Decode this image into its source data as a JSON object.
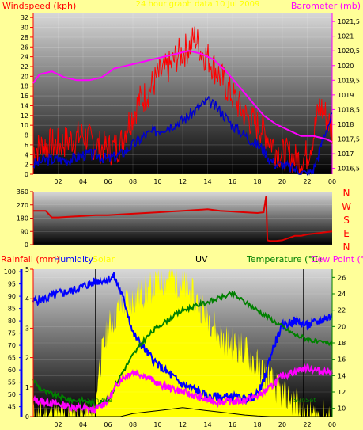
{
  "colors": {
    "background": "#ffff99",
    "wind": "#ff0000",
    "wind_avg": "#0000cc",
    "barometer": "#ff00ff",
    "direction": "#dd0000",
    "humidity": "#0000ff",
    "solar": "#ffff00",
    "uv": "#000000",
    "temperature": "#008000",
    "dewpoint": "#ff00ff",
    "rainfall": "#ff0000",
    "axis_blue": "#0000ff",
    "axis_green": "#008000"
  },
  "chart_data": [
    {
      "type": "line",
      "title": "24 hour graph data 10 Jul 2009",
      "left_axis_label": "Windspeed (kph)",
      "right_axis_label": "Barometer (mb)",
      "x_ticks": [
        "02",
        "04",
        "06",
        "08",
        "10",
        "12",
        "14",
        "16",
        "18",
        "20",
        "22",
        "00"
      ],
      "left_ticks": [
        "0",
        "2",
        "4",
        "6",
        "8",
        "10",
        "12",
        "14",
        "16",
        "18",
        "20",
        "22",
        "24",
        "26",
        "28",
        "30",
        "32"
      ],
      "right_ticks": [
        "1016,5",
        "1017",
        "1017,5",
        "1018",
        "1018,5",
        "1019",
        "1019,5",
        "1020",
        "1020,5",
        "1021",
        "1021,5"
      ],
      "xlim": [
        0,
        24
      ],
      "ylim_left": [
        0,
        33
      ],
      "ylim_right": [
        1016.3,
        1021.8
      ],
      "series": [
        {
          "role": "windspeed",
          "axis": "left",
          "x": [
            0,
            1,
            2,
            3,
            4,
            5,
            6,
            7,
            7.5,
            8,
            8.5,
            9,
            9.5,
            10,
            10.5,
            11,
            11.5,
            12,
            12.5,
            13,
            13.5,
            14,
            14.5,
            15,
            15.5,
            16,
            16.5,
            17,
            17.5,
            18,
            18.5,
            19,
            19.5,
            20,
            20.5,
            21,
            21.5,
            22,
            22.5,
            23,
            23.5,
            24
          ],
          "values": [
            5,
            6,
            6,
            7,
            8,
            6,
            5,
            6,
            10,
            12,
            15,
            16,
            18,
            20,
            21,
            22,
            24,
            25,
            26,
            28,
            25,
            24,
            22,
            20,
            18,
            16,
            14,
            12,
            11,
            10,
            9,
            7,
            5,
            4,
            4,
            3,
            3,
            4,
            8,
            14,
            12,
            9
          ]
        },
        {
          "role": "windspeed-avg",
          "axis": "left",
          "x": [
            0,
            1,
            2,
            3,
            4,
            5,
            6,
            7,
            8,
            9,
            10,
            11,
            12,
            13,
            14,
            15,
            16,
            17,
            18,
            18.5,
            19,
            19.5,
            20,
            21,
            22,
            22.5,
            23,
            23.5,
            24
          ],
          "values": [
            2,
            3,
            3,
            3,
            4,
            4,
            3,
            4,
            6,
            8,
            9,
            10,
            11,
            13,
            15,
            13,
            10,
            8,
            6,
            5,
            3,
            2,
            2,
            1,
            0,
            1,
            5,
            9,
            12
          ]
        },
        {
          "role": "barometer",
          "axis": "right",
          "x": [
            0,
            0.5,
            1.5,
            2.5,
            3.5,
            4.5,
            5.5,
            6.5,
            7.5,
            8.5,
            9.5,
            10.5,
            11.5,
            12.5,
            13.5,
            14.5,
            15.5,
            16.5,
            17.5,
            18.5,
            19.5,
            20.5,
            21.5,
            22.5,
            23.5,
            24
          ],
          "values": [
            1019.4,
            1019.7,
            1019.8,
            1019.6,
            1019.5,
            1019.5,
            1019.6,
            1019.9,
            1020,
            1020.1,
            1020.2,
            1020.3,
            1020.4,
            1020.5,
            1020.4,
            1020.2,
            1019.8,
            1019.3,
            1018.8,
            1018.3,
            1018,
            1017.8,
            1017.6,
            1017.6,
            1017.5,
            1017.4
          ]
        }
      ]
    },
    {
      "type": "line",
      "direction_labels": [
        "N",
        "W",
        "S",
        "E",
        "N"
      ],
      "y_ticks": [
        "0",
        "90",
        "180",
        "270",
        "360"
      ],
      "ylim": [
        0,
        360
      ],
      "xlim": [
        0,
        24
      ],
      "series": [
        {
          "role": "wind-direction",
          "x": [
            0,
            1,
            1.5,
            2,
            3,
            4,
            5,
            6,
            7,
            8,
            9,
            10,
            11,
            12,
            13,
            14,
            15,
            16,
            17,
            18,
            18.5,
            18.7,
            18.8,
            19,
            19.5,
            20,
            20.5,
            21,
            21.5,
            22,
            23,
            24
          ],
          "values": [
            230,
            230,
            185,
            185,
            190,
            195,
            200,
            200,
            205,
            210,
            215,
            220,
            225,
            230,
            235,
            240,
            230,
            225,
            220,
            215,
            220,
            330,
            30,
            25,
            25,
            30,
            45,
            60,
            60,
            70,
            80,
            90
          ]
        }
      ]
    },
    {
      "type": "line",
      "labels": {
        "rainfall": "Rainfall (mm)",
        "humidity": "Humidity",
        "solar": "Solar",
        "uv": "UV",
        "temperature": "Temperature (°C)",
        "dewpoint": "Dew Point (°C)"
      },
      "sunrise_label": "SunRise",
      "sunset_label": "SunSet",
      "sunrise_hour": 5,
      "sunset_hour": 21.7,
      "x_ticks": [
        "02",
        "04",
        "06",
        "08",
        "10",
        "12",
        "14",
        "16",
        "18",
        "20",
        "22",
        "00"
      ],
      "rain_ticks": [
        "0",
        "1",
        "2",
        "3",
        "4",
        "5"
      ],
      "humidity_ticks": [
        "45",
        "50",
        "55",
        "60",
        "65",
        "70",
        "75",
        "80",
        "85",
        "90",
        "95",
        "100"
      ],
      "temp_ticks": [
        "10",
        "12",
        "14",
        "16",
        "18",
        "20",
        "22",
        "24",
        "26"
      ],
      "xlim": [
        0,
        24
      ],
      "ylim_rain": [
        0,
        5
      ],
      "ylim_humidity": [
        41,
        101
      ],
      "ylim_temp": [
        9,
        27
      ],
      "series": [
        {
          "role": "humidity",
          "x": [
            0,
            1,
            2,
            3,
            4,
            5,
            6,
            6.5,
            7,
            7.5,
            8,
            9,
            10,
            11,
            12,
            13,
            14,
            15,
            16,
            17,
            18,
            18.5,
            19,
            19.5,
            20,
            21,
            22,
            23,
            23.5,
            24
          ],
          "values": [
            88,
            89,
            91,
            92,
            94,
            96,
            97,
            98,
            92,
            85,
            75,
            68,
            62,
            58,
            54,
            52,
            49,
            49,
            49,
            48,
            50,
            55,
            65,
            72,
            78,
            80,
            78,
            80,
            81,
            82
          ]
        },
        {
          "role": "temperature",
          "x": [
            0,
            0.5,
            1,
            2,
            3,
            4,
            5,
            6,
            7,
            8,
            9,
            10,
            11,
            12,
            13,
            14,
            15,
            16,
            17,
            18,
            19,
            20,
            21,
            22,
            23,
            24
          ],
          "values": [
            13.5,
            12.5,
            12,
            11.5,
            11,
            11,
            10.5,
            11,
            14,
            16.5,
            18.5,
            20,
            21,
            22,
            22.5,
            23,
            23.5,
            24,
            23,
            22,
            21,
            20,
            19,
            18.5,
            18,
            18
          ]
        },
        {
          "role": "dewpoint",
          "x": [
            0,
            1,
            2,
            3,
            4,
            5,
            6,
            7,
            8,
            9,
            10,
            11,
            12,
            13,
            14,
            15,
            16,
            17,
            18,
            19,
            20,
            21,
            22,
            23,
            24
          ],
          "values": [
            11,
            10.8,
            10.5,
            10.2,
            10,
            9.8,
            11,
            13.5,
            14.5,
            14,
            13,
            12.5,
            12,
            11.5,
            11,
            10.8,
            10.8,
            11,
            11.5,
            12.5,
            14,
            14.5,
            15,
            14.5,
            14.5
          ]
        },
        {
          "role": "solar",
          "x": [
            0,
            5,
            5.2,
            6,
            7,
            8,
            9,
            10,
            11,
            12,
            13,
            14,
            15,
            16,
            17,
            18,
            19,
            20,
            21,
            21.5,
            22,
            24
          ],
          "values": [
            0,
            0,
            0.3,
            0.6,
            0.75,
            0.8,
            0.85,
            0.9,
            0.95,
            0.9,
            0.8,
            0.7,
            0.55,
            0.5,
            0.45,
            0.35,
            0.25,
            0.15,
            0.1,
            0.05,
            0,
            0
          ]
        },
        {
          "role": "uv",
          "x": [
            0,
            5,
            6,
            7,
            8,
            9,
            10,
            11,
            12,
            13,
            14,
            15,
            16,
            17,
            18,
            19,
            20,
            21,
            22,
            24
          ],
          "values": [
            0,
            0,
            0,
            0,
            0.1,
            0.15,
            0.2,
            0.25,
            0.3,
            0.25,
            0.2,
            0.15,
            0.1,
            0.05,
            0.02,
            0,
            0,
            0,
            0,
            0
          ]
        }
      ]
    }
  ]
}
